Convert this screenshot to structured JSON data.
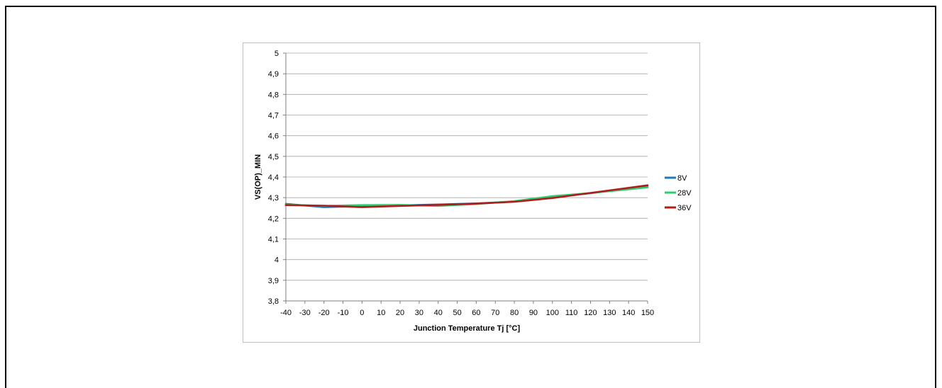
{
  "chart_data": {
    "type": "line",
    "xlabel": "Junction Temperature Tj [°C]",
    "ylabel": "VS(OP)_MIN",
    "xlim": [
      -40,
      150
    ],
    "ylim": [
      3.8,
      5
    ],
    "x_ticks": [
      "-40",
      "-30",
      "-20",
      "-10",
      "0",
      "10",
      "20",
      "30",
      "40",
      "50",
      "60",
      "70",
      "80",
      "90",
      "100",
      "110",
      "120",
      "130",
      "140",
      "150"
    ],
    "y_ticks": [
      "3,8",
      "3,9",
      "4",
      "4,1",
      "4,2",
      "4,3",
      "4,4",
      "4,5",
      "4,6",
      "4,7",
      "4,8",
      "4,9",
      "5"
    ],
    "grid": true,
    "legend_position": "right",
    "x": [
      -40,
      -20,
      0,
      20,
      40,
      60,
      80,
      100,
      120,
      150
    ],
    "series": [
      {
        "name": "8V",
        "color": "#1f77b4",
        "values": [
          4.27,
          4.254,
          4.259,
          4.263,
          4.267,
          4.272,
          4.281,
          4.303,
          4.321,
          4.358
        ]
      },
      {
        "name": "28V",
        "color": "#2ecc71",
        "values": [
          4.266,
          4.26,
          4.264,
          4.265,
          4.26,
          4.269,
          4.283,
          4.307,
          4.322,
          4.35
        ]
      },
      {
        "name": "36V",
        "color": "#b01c1c",
        "values": [
          4.264,
          4.261,
          4.254,
          4.26,
          4.265,
          4.271,
          4.28,
          4.298,
          4.323,
          4.36
        ]
      }
    ]
  }
}
